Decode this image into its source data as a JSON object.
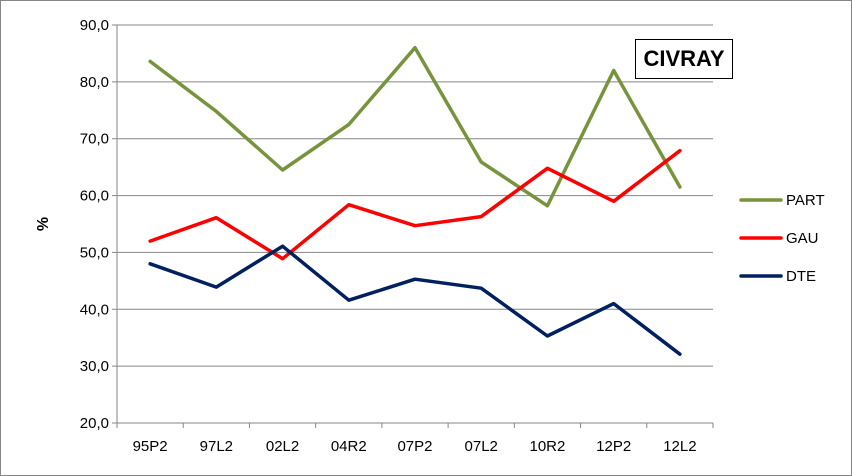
{
  "chart_data": {
    "type": "line",
    "title": "CIVRAY",
    "xlabel": "",
    "ylabel": "%",
    "ylim": [
      20,
      90
    ],
    "yticks": [
      "20,0",
      "30,0",
      "40,0",
      "50,0",
      "60,0",
      "70,0",
      "80,0",
      "90,0"
    ],
    "categories": [
      "95P2",
      "97L2",
      "02L2",
      "04R2",
      "07P2",
      "07L2",
      "10R2",
      "12P2",
      "12L2"
    ],
    "grid": "horizontal",
    "legend_position": "right",
    "series": [
      {
        "name": "PART",
        "color": "#77933c",
        "values": [
          83.6,
          74.8,
          64.5,
          72.5,
          86.0,
          65.9,
          58.2,
          82.0,
          61.5
        ]
      },
      {
        "name": "GAU",
        "color": "#ff0000",
        "values": [
          52.0,
          56.1,
          48.9,
          58.4,
          54.7,
          56.3,
          64.8,
          59.0,
          67.9
        ]
      },
      {
        "name": "DTE",
        "color": "#002060",
        "values": [
          48.0,
          43.9,
          51.1,
          41.6,
          45.3,
          43.7,
          35.3,
          41.0,
          32.1
        ]
      }
    ]
  }
}
